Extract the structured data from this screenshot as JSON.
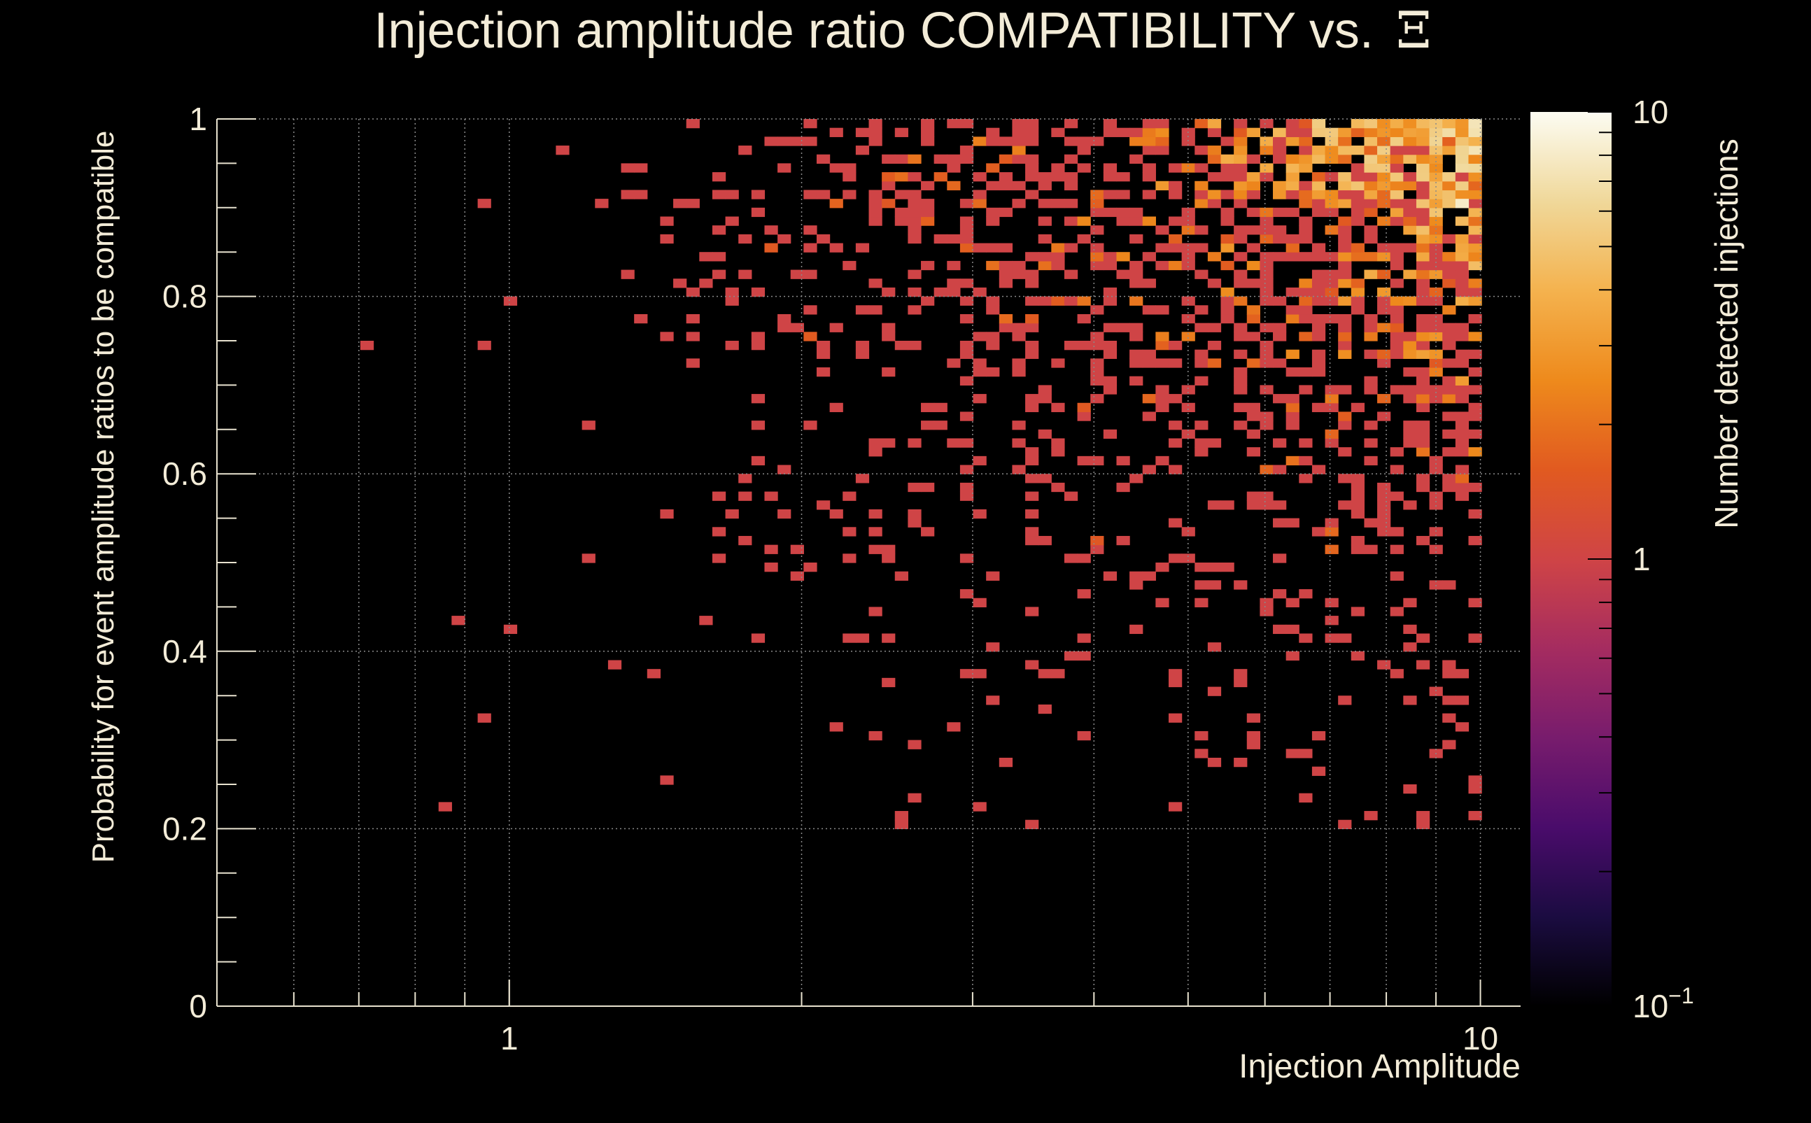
{
  "chart_data": {
    "type": "heatmap",
    "title": "Injection amplitude ratio COMPATIBILITY vs. ",
    "title_symbol": "Ξ",
    "xlabel": "Injection Amplitude",
    "ylabel": "Probability for event amplitude ratios to be compatible",
    "zlabel": "Number detected injections",
    "x_scale": "log",
    "xlim": [
      0.5,
      11
    ],
    "ylim": [
      0,
      1
    ],
    "x_ticks": [
      {
        "value": 1,
        "label": "1"
      },
      {
        "value": 10,
        "label": "10"
      }
    ],
    "y_ticks": [
      {
        "value": 0,
        "label": "0"
      },
      {
        "value": 0.2,
        "label": "0.2"
      },
      {
        "value": 0.4,
        "label": "0.4"
      },
      {
        "value": 0.6,
        "label": "0.6"
      },
      {
        "value": 0.8,
        "label": "0.8"
      },
      {
        "value": 1,
        "label": "1"
      }
    ],
    "z_scale": "log",
    "zlim": [
      0.1,
      10
    ],
    "z_ticks": [
      {
        "value": 0.1,
        "label_base": "10",
        "label_exp": "−1"
      },
      {
        "value": 1,
        "label_base": "1",
        "label_exp": ""
      },
      {
        "value": 10,
        "label_base": "10",
        "label_exp": ""
      }
    ],
    "grid": true,
    "colormap": [
      "#000000",
      "#1b0c41",
      "#4a0c6b",
      "#781c6d",
      "#a52c60",
      "#cf4446",
      "#e15a20",
      "#ee8a1c",
      "#f4b24e",
      "#f0d89a",
      "#fcfcf2"
    ],
    "colors": {
      "background": "#000000",
      "text": "#f3ecd8",
      "axis": "#e8e2cf",
      "grid": "#8a8a8a",
      "bin_low": "#e15a20"
    },
    "histogram_bins": {
      "x_bins": 100,
      "y_bins": 100,
      "note_density": "occupancy increases toward high amplitude and high probability; typical counts 1–10"
    },
    "sample_bins": [
      {
        "x": 0.72,
        "y": 0.745,
        "count": 1
      },
      {
        "x": 0.86,
        "y": 0.225,
        "count": 1
      },
      {
        "x": 0.89,
        "y": 0.43,
        "count": 1
      },
      {
        "x": 0.95,
        "y": 0.745,
        "count": 1
      },
      {
        "x": 0.95,
        "y": 0.32,
        "count": 1
      },
      {
        "x": 1.0,
        "y": 0.795,
        "count": 1
      },
      {
        "x": 1.0,
        "y": 0.42,
        "count": 1
      },
      {
        "x": 1.15,
        "y": 0.965,
        "count": 1
      },
      {
        "x": 1.4,
        "y": 0.37,
        "count": 1
      },
      {
        "x": 2.55,
        "y": 0.2,
        "count": 1
      },
      {
        "x": 2.55,
        "y": 0.215,
        "count": 1
      },
      {
        "x": 3.5,
        "y": 0.205,
        "count": 1
      },
      {
        "x": 7.2,
        "y": 0.205,
        "count": 1
      },
      {
        "x": 8.5,
        "y": 0.24,
        "count": 1
      },
      {
        "x": 9.5,
        "y": 0.9,
        "count": 8
      },
      {
        "x": 9.7,
        "y": 0.96,
        "count": 6
      }
    ]
  }
}
